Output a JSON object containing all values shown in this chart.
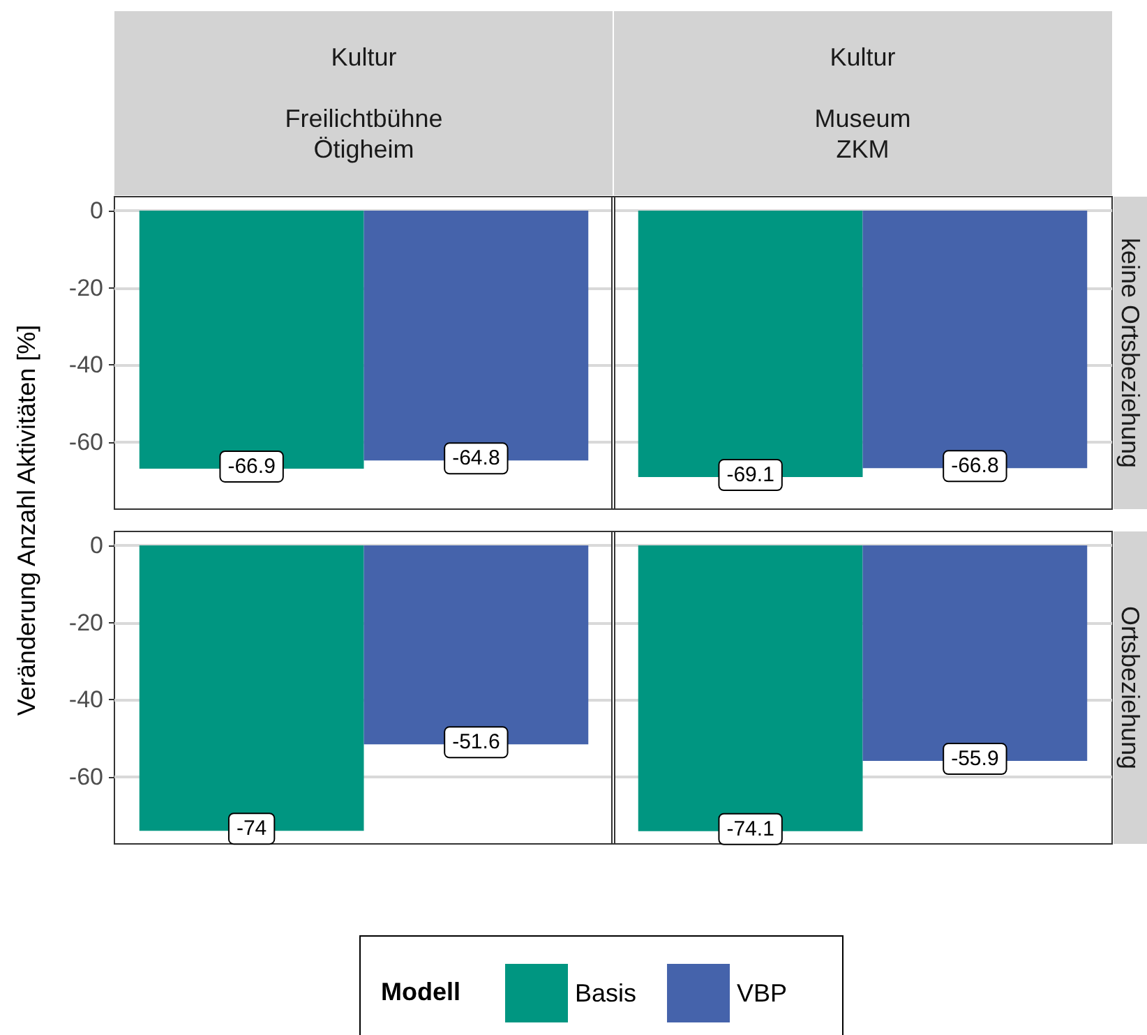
{
  "chart_data": [
    {
      "type": "bar",
      "ylabel": "Veränderung Anzahl Aktivitäten [%]",
      "annotations": [
        "keine Ortsbeziehung"
      ],
      "categories": [
        "Kultur\n\nFreilichtbühne\nÖtigheim",
        "Kultur\n\nMuseum\nZKM"
      ],
      "series": [
        {
          "color": "#009681",
          "values": [
            -66.9,
            -69.1
          ]
        },
        {
          "color": "#4563ab",
          "values": [
            -64.8,
            -66.8
          ]
        }
      ],
      "ylim": [
        -77.4,
        3.6
      ],
      "yticks": [
        -60,
        -40,
        -20,
        0
      ],
      "grid": "y",
      "data_labels": true
    },
    {
      "type": "bar",
      "annotations": [
        "Ortsbeziehung"
      ],
      "categories": [
        null,
        null
      ],
      "series": [
        {
          "name": "Basis",
          "color": "#009681",
          "values": [
            -74,
            -74.1
          ]
        },
        {
          "name": "VBP",
          "color": "#4563ab",
          "values": [
            -51.6,
            -55.9
          ]
        }
      ],
      "ylim": [
        -77.4,
        3.6
      ],
      "yticks": [
        -60,
        -40,
        -20,
        0
      ],
      "grid": "y",
      "data_labels": true,
      "legend": "bottom",
      "legend_title": "Modell"
    }
  ]
}
